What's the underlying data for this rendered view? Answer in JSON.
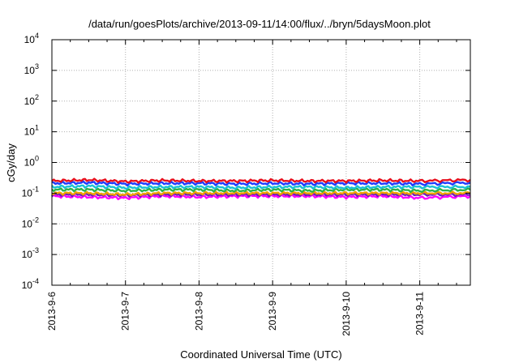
{
  "chart_data": {
    "type": "line",
    "title": "/data/run/goesPlots/archive/2013-09-11/14:00/flux/../bryn/5daysMoon.plot",
    "xlabel": "Coordinated Universal Time (UTC)",
    "ylabel": "cGy/day",
    "yscale": "log",
    "grid": true,
    "ylim": [
      0.0001,
      10000
    ],
    "xlim": [
      "2013-09-06T00:00",
      "2013-09-11T16:30"
    ],
    "x_ticks": [
      "2013-9-6",
      "2013-9-7",
      "2013-9-8",
      "2013-9-9",
      "2013-9-10",
      "2013-9-11"
    ],
    "y_ticks": [
      {
        "base": "10",
        "exp": "-4"
      },
      {
        "base": "10",
        "exp": "-3"
      },
      {
        "base": "10",
        "exp": "-2"
      },
      {
        "base": "10",
        "exp": "-1"
      },
      {
        "base": "10",
        "exp": "0"
      },
      {
        "base": "10",
        "exp": "1"
      },
      {
        "base": "10",
        "exp": "2"
      },
      {
        "base": "10",
        "exp": "3"
      },
      {
        "base": "10",
        "exp": "4"
      }
    ],
    "x": [
      "2013-09-06T00:00",
      "2013-09-06T12:00",
      "2013-09-07T00:00",
      "2013-09-07T12:00",
      "2013-09-08T00:00",
      "2013-09-08T12:00",
      "2013-09-09T00:00",
      "2013-09-09T12:00",
      "2013-09-10T00:00",
      "2013-09-10T12:00",
      "2013-09-11T00:00",
      "2013-09-11T16:30"
    ],
    "series": [
      {
        "color": "#e8101e",
        "values": [
          0.25,
          0.27,
          0.24,
          0.26,
          0.25,
          0.25,
          0.26,
          0.25,
          0.25,
          0.26,
          0.25,
          0.27
        ]
      },
      {
        "color": "#1f3cff",
        "values": [
          0.21,
          0.22,
          0.2,
          0.21,
          0.21,
          0.2,
          0.21,
          0.2,
          0.21,
          0.21,
          0.2,
          0.22
        ]
      },
      {
        "color": "#19c2d4",
        "values": [
          0.16,
          0.17,
          0.15,
          0.16,
          0.16,
          0.15,
          0.16,
          0.16,
          0.15,
          0.16,
          0.16,
          0.16
        ]
      },
      {
        "color": "#2bb24c",
        "values": [
          0.13,
          0.13,
          0.12,
          0.13,
          0.13,
          0.12,
          0.13,
          0.12,
          0.13,
          0.13,
          0.12,
          0.13
        ]
      },
      {
        "color": "#f0a000",
        "values": [
          0.1,
          0.1,
          0.09,
          0.1,
          0.1,
          0.1,
          0.1,
          0.1,
          0.1,
          0.1,
          0.1,
          0.1
        ]
      },
      {
        "color": "#6a1fb8",
        "values": [
          0.09,
          0.09,
          0.085,
          0.09,
          0.09,
          0.09,
          0.09,
          0.09,
          0.09,
          0.09,
          0.09,
          0.09
        ]
      },
      {
        "color": "#ff00ff",
        "values": [
          0.08,
          0.075,
          0.07,
          0.08,
          0.075,
          0.08,
          0.08,
          0.08,
          0.075,
          0.08,
          0.07,
          0.08
        ]
      }
    ]
  }
}
